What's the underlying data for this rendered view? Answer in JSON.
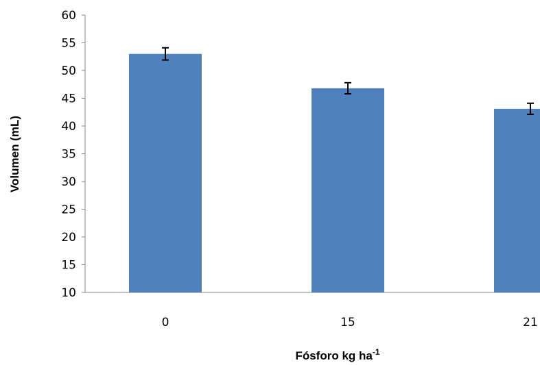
{
  "chart_data": {
    "type": "bar",
    "categories": [
      "0",
      "15",
      "21"
    ],
    "values": [
      53.0,
      46.8,
      43.1
    ],
    "errors": [
      1.1,
      1.0,
      1.0
    ],
    "xlabel_main": "Fósforo kg ha",
    "xlabel_sup": "-1",
    "ylabel": "Volumen (mL)",
    "ylim": [
      10,
      60
    ],
    "yticks": [
      "10",
      "15",
      "20",
      "25",
      "30",
      "35",
      "40",
      "45",
      "50",
      "55",
      "60"
    ],
    "grid": false,
    "bar_color": "#4f81bd",
    "error_color": "#000000"
  }
}
